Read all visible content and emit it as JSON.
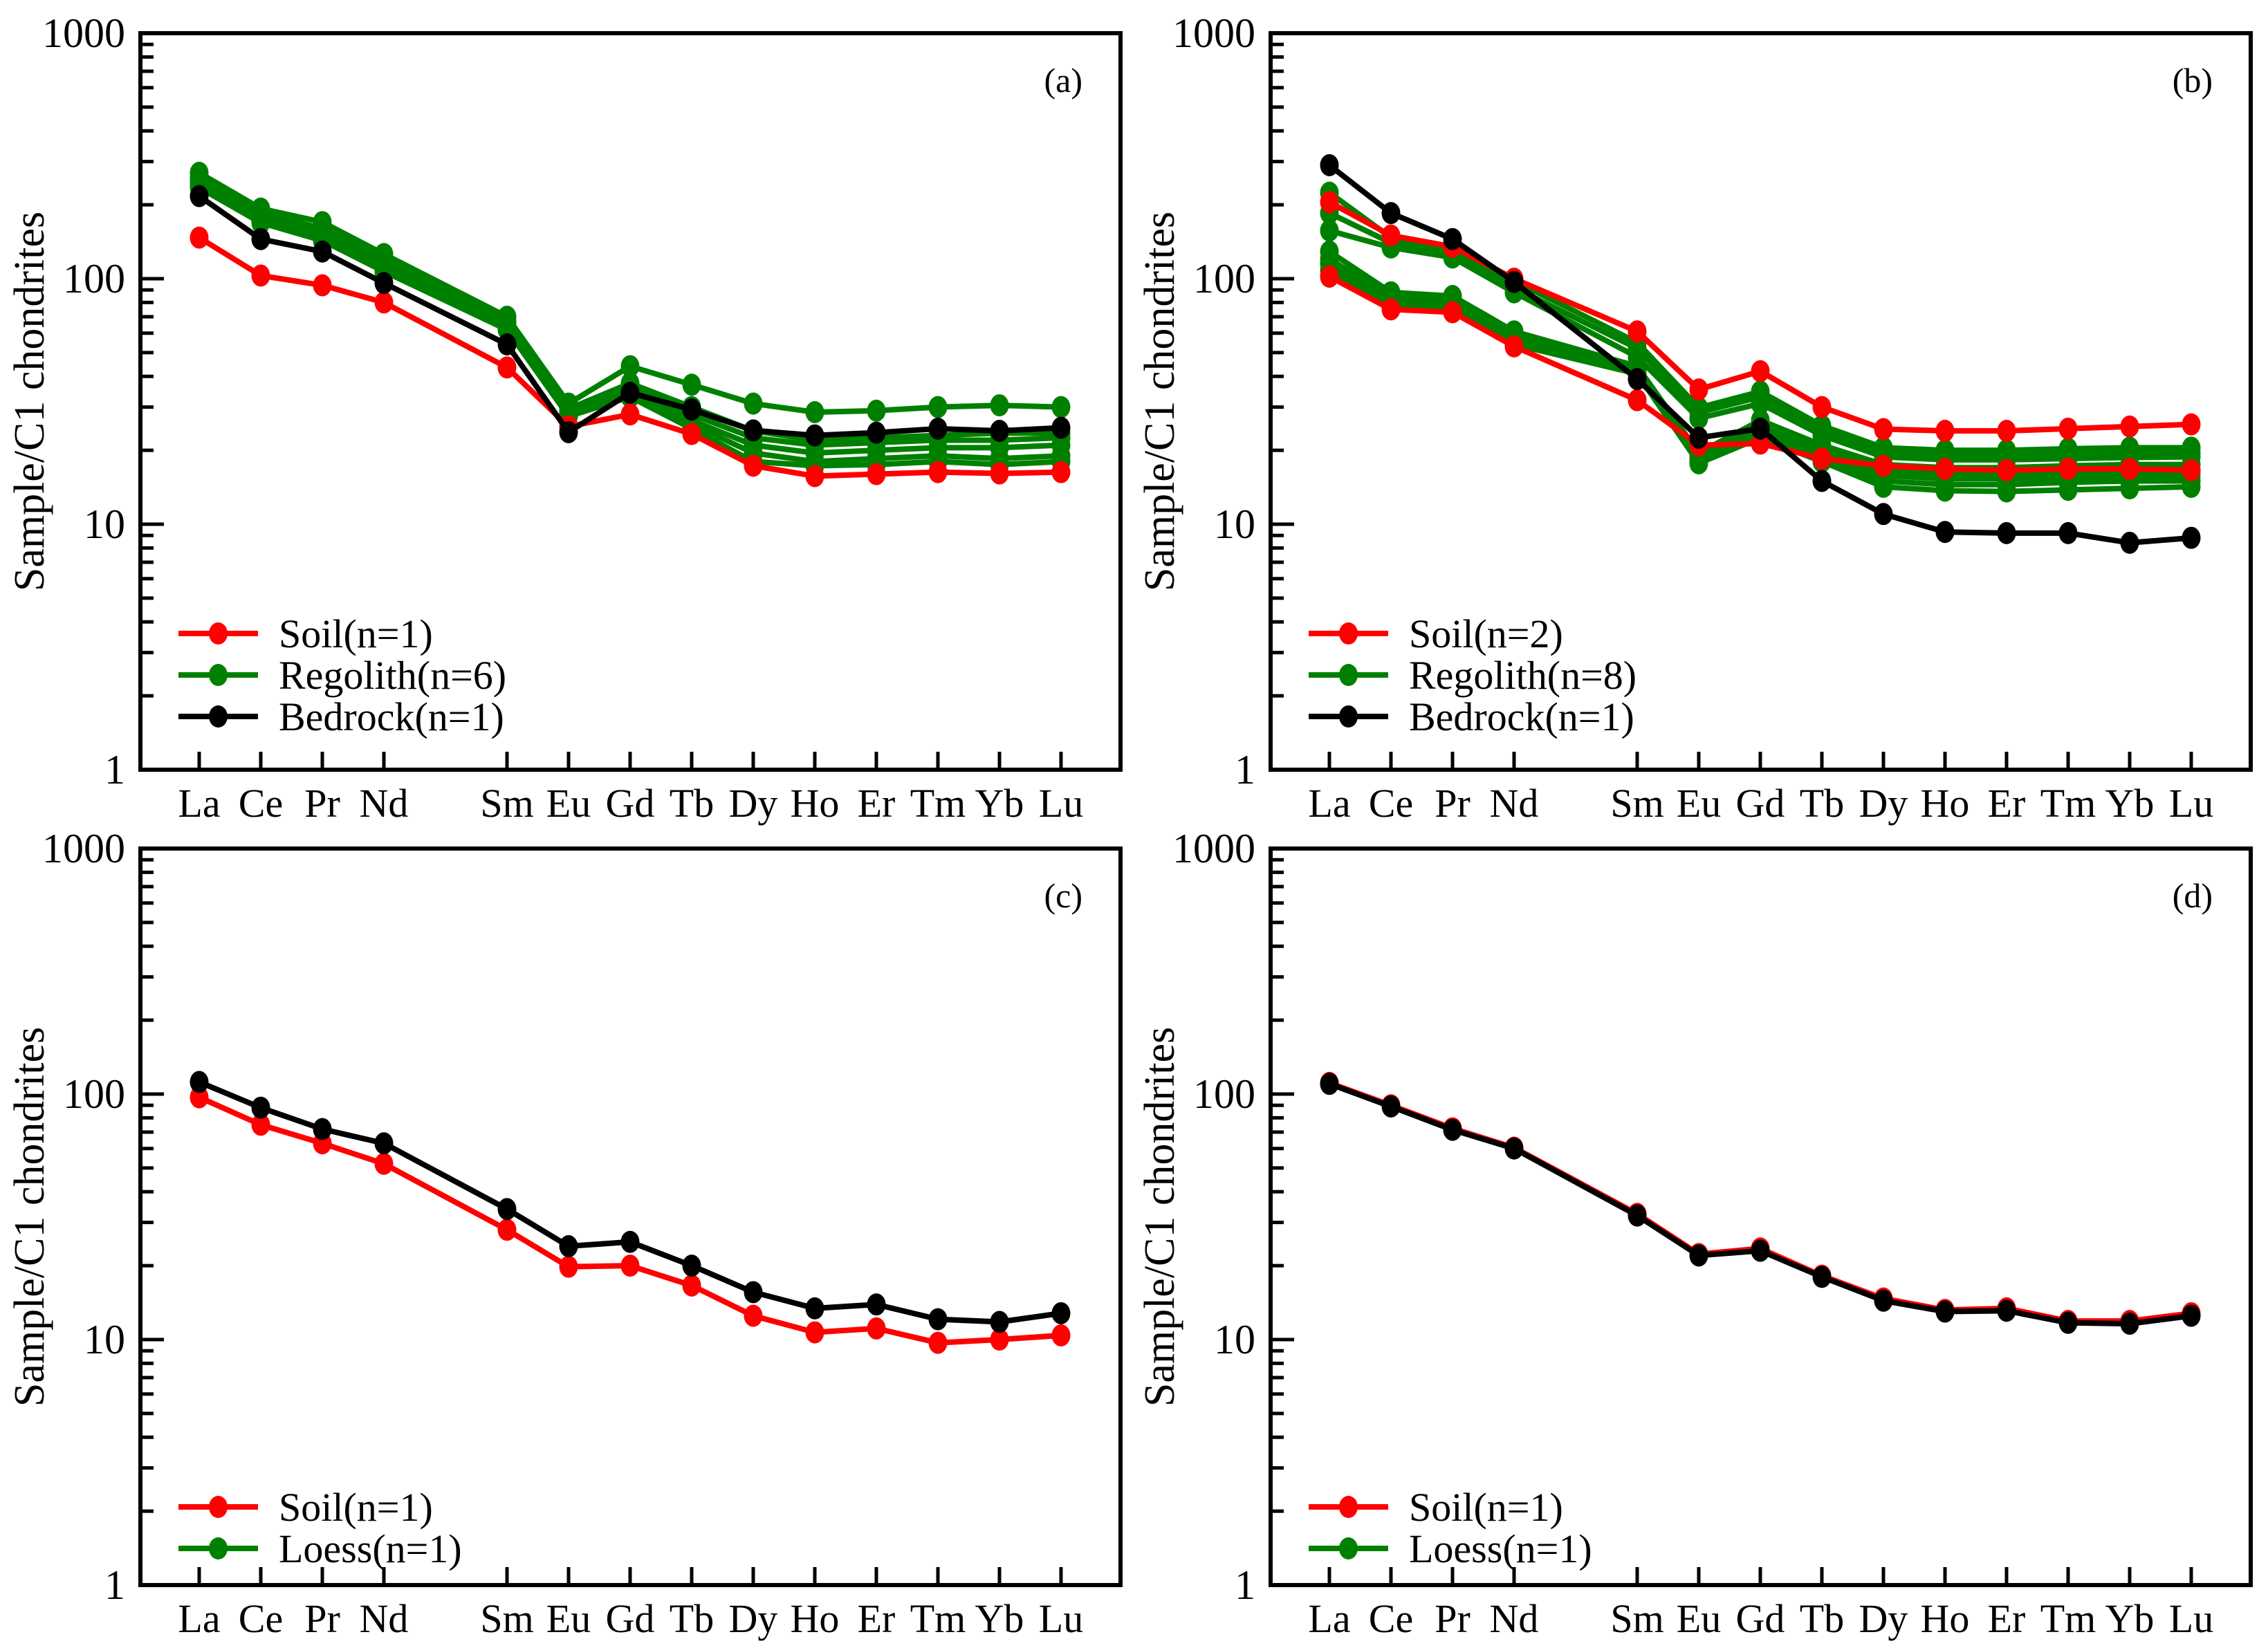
{
  "figure": {
    "background": "#ffffff",
    "ylabel": "Sample/C1 chondrites",
    "x_categories": [
      "La",
      "Ce",
      "Pr",
      "Nd",
      "Sm",
      "Eu",
      "Gd",
      "Tb",
      "Dy",
      "Ho",
      "Er",
      "Tm",
      "Yb",
      "Lu"
    ],
    "x_slots": [
      0,
      1,
      2,
      3,
      5,
      6,
      7,
      8,
      9,
      10,
      11,
      12,
      13,
      14
    ],
    "ylim": [
      1,
      1000
    ],
    "yticks": [
      1,
      10,
      100,
      1000
    ],
    "grid": false,
    "colors": {
      "soil": "#ff0000",
      "regolith": "#008000",
      "bedrock": "#000000",
      "loess_line": "#000000",
      "loess_legend": "#008000"
    }
  },
  "chart_data": [
    {
      "id": "a",
      "panel_label": "(a)",
      "type": "line",
      "log_y": true,
      "ylabel": "Sample/C1 chondrites",
      "ylim": [
        1,
        1000
      ],
      "legend_position": "lower-left",
      "legend": [
        {
          "label": "Soil(n=1)",
          "color": "#ff0000"
        },
        {
          "label": "Regolith(n=6)",
          "color": "#008000"
        },
        {
          "label": "Bedrock(n=1)",
          "color": "#000000"
        }
      ],
      "series": [
        {
          "name": "Regolith-1",
          "group": "regolith",
          "color": "#008000",
          "values": [
            270,
            193,
            170,
            126,
            70,
            31,
            44,
            37,
            31,
            28.6,
            29,
            30,
            30.5,
            30
          ]
        },
        {
          "name": "Regolith-2",
          "group": "regolith",
          "color": "#008000",
          "values": [
            258,
            186,
            160,
            120,
            67,
            29.5,
            37.5,
            30,
            24,
            22,
            22.5,
            23,
            23.5,
            23.5
          ]
        },
        {
          "name": "Regolith-3",
          "group": "regolith",
          "color": "#008000",
          "values": [
            250,
            180,
            152,
            116,
            65,
            29,
            36,
            28,
            22.5,
            21,
            21.5,
            22,
            22,
            22.5
          ]
        },
        {
          "name": "Regolith-4",
          "group": "regolith",
          "color": "#008000",
          "values": [
            245,
            176,
            148,
            113,
            64,
            28.5,
            34.5,
            26.5,
            21,
            19.5,
            20,
            20.5,
            20.5,
            21
          ]
        },
        {
          "name": "Regolith-5",
          "group": "regolith",
          "color": "#008000",
          "values": [
            240,
            172,
            145,
            110,
            63,
            28,
            33.5,
            25.5,
            19.5,
            18,
            18.5,
            19,
            18.5,
            19
          ]
        },
        {
          "name": "Regolith-6",
          "group": "regolith",
          "color": "#008000",
          "values": [
            235,
            169,
            143,
            107,
            62,
            27.5,
            33,
            24.5,
            18,
            17.3,
            17.5,
            18,
            17.5,
            18
          ]
        },
        {
          "name": "Soil-1",
          "group": "soil",
          "color": "#ff0000",
          "values": [
            147,
            103,
            94,
            80,
            43.5,
            25,
            28,
            23.3,
            17.3,
            15.7,
            16,
            16.3,
            16.1,
            16.3
          ]
        },
        {
          "name": "Bedrock-1",
          "group": "bedrock",
          "color": "#000000",
          "values": [
            217,
            145,
            129,
            96,
            54,
            23.7,
            34.3,
            29.3,
            24.1,
            23,
            23.6,
            24.5,
            24,
            24.7
          ]
        }
      ]
    },
    {
      "id": "b",
      "panel_label": "(b)",
      "type": "line",
      "log_y": true,
      "ylabel": "Sample/C1 chondrites",
      "ylim": [
        1,
        1000
      ],
      "legend_position": "lower-left",
      "legend": [
        {
          "label": "Soil(n=2)",
          "color": "#ff0000"
        },
        {
          "label": "Regolith(n=8)",
          "color": "#008000"
        },
        {
          "label": "Bedrock(n=1)",
          "color": "#000000"
        }
      ],
      "series": [
        {
          "name": "Regolith-1",
          "group": "regolith",
          "color": "#008000",
          "values": [
            224,
            147,
            134,
            98,
            55,
            29.8,
            34.7,
            25.2,
            20.5,
            20,
            20,
            20.3,
            20.5,
            20.5
          ]
        },
        {
          "name": "Regolith-2",
          "group": "regolith",
          "color": "#008000",
          "values": [
            185,
            140,
            128,
            92,
            52,
            28.5,
            33,
            24,
            19.5,
            19,
            19,
            19.3,
            19.5,
            19.5
          ]
        },
        {
          "name": "Regolith-3",
          "group": "regolith",
          "color": "#008000",
          "values": [
            157,
            134,
            122,
            88,
            48,
            27,
            31,
            23,
            18.8,
            18.3,
            18.3,
            18.5,
            18.7,
            18.8
          ]
        },
        {
          "name": "Regolith-4",
          "group": "regolith",
          "color": "#008000",
          "values": [
            129,
            88,
            85,
            61,
            44,
            19.5,
            26.5,
            21,
            17.5,
            17,
            17,
            17.3,
            17.5,
            17.5
          ]
        },
        {
          "name": "Regolith-5",
          "group": "regolith",
          "color": "#008000",
          "values": [
            120,
            85,
            82,
            59,
            43,
            19,
            25,
            20,
            16.5,
            16,
            16,
            16.3,
            16.5,
            16.5
          ]
        },
        {
          "name": "Regolith-6",
          "group": "regolith",
          "color": "#008000",
          "values": [
            115,
            82,
            79,
            57,
            42,
            18.5,
            24,
            19.3,
            15.8,
            15.3,
            15.3,
            15.5,
            15.8,
            15.8
          ]
        },
        {
          "name": "Regolith-7",
          "group": "regolith",
          "color": "#008000",
          "values": [
            108,
            80,
            77,
            55,
            41.5,
            18,
            23,
            18.5,
            15,
            14.5,
            14.5,
            14.8,
            15,
            15
          ]
        },
        {
          "name": "Regolith-8",
          "group": "regolith",
          "color": "#008000",
          "values": [
            102,
            78,
            75,
            54,
            41,
            17.7,
            22.5,
            18,
            14.2,
            13.7,
            13.6,
            13.8,
            14,
            14.2
          ]
        },
        {
          "name": "Soil-1",
          "group": "soil",
          "color": "#ff0000",
          "values": [
            205,
            150,
            135,
            100,
            61,
            35.4,
            42,
            30,
            24.4,
            24,
            24,
            24.5,
            25,
            25.5
          ]
        },
        {
          "name": "Soil-2",
          "group": "soil",
          "color": "#ff0000",
          "values": [
            102,
            75,
            73,
            53,
            32,
            21,
            21.3,
            18.5,
            17.3,
            16.8,
            16.6,
            16.8,
            16.8,
            16.6
          ]
        },
        {
          "name": "Bedrock-1",
          "group": "bedrock",
          "color": "#000000",
          "values": [
            290,
            185,
            145,
            97,
            39,
            22.5,
            24.5,
            15,
            11,
            9.3,
            9.2,
            9.2,
            8.4,
            8.8
          ]
        }
      ]
    },
    {
      "id": "c",
      "panel_label": "(c)",
      "type": "line",
      "log_y": true,
      "ylabel": "Sample/C1 chondrites",
      "ylim": [
        1,
        1000
      ],
      "legend_position": "lower-left",
      "legend": [
        {
          "label": "Soil(n=1)",
          "color": "#ff0000"
        },
        {
          "label": "Loess(n=1)",
          "color": "#008000"
        }
      ],
      "series": [
        {
          "name": "Soil-1",
          "group": "soil",
          "color": "#ff0000",
          "values": [
            97,
            75,
            63,
            52,
            28,
            19.8,
            20,
            16.6,
            12.5,
            10.7,
            11.1,
            9.7,
            10,
            10.4
          ]
        },
        {
          "name": "Loess-1",
          "group": "loess",
          "color": "#000000",
          "values": [
            112,
            88,
            72,
            63,
            34,
            24,
            25,
            20,
            15.6,
            13.4,
            13.9,
            12.1,
            11.8,
            12.8
          ]
        }
      ]
    },
    {
      "id": "d",
      "panel_label": "(d)",
      "type": "line",
      "log_y": true,
      "ylabel": "Sample/C1 chondrites",
      "ylim": [
        1,
        1000
      ],
      "legend_position": "lower-left",
      "legend": [
        {
          "label": "Soil(n=1)",
          "color": "#ff0000"
        },
        {
          "label": "Loess(n=1)",
          "color": "#008000"
        }
      ],
      "series": [
        {
          "name": "Soil-1",
          "group": "soil",
          "color": "#ff0000",
          "values": [
            111,
            90,
            72.5,
            60.5,
            32.5,
            22.3,
            23.5,
            18.2,
            14.7,
            13.2,
            13.4,
            11.9,
            11.9,
            12.8
          ]
        },
        {
          "name": "Loess-1",
          "group": "loess",
          "color": "#000000",
          "values": [
            110,
            89,
            71.5,
            60,
            32,
            22,
            23,
            18,
            14.4,
            13,
            13.1,
            11.7,
            11.6,
            12.5
          ]
        }
      ]
    }
  ]
}
